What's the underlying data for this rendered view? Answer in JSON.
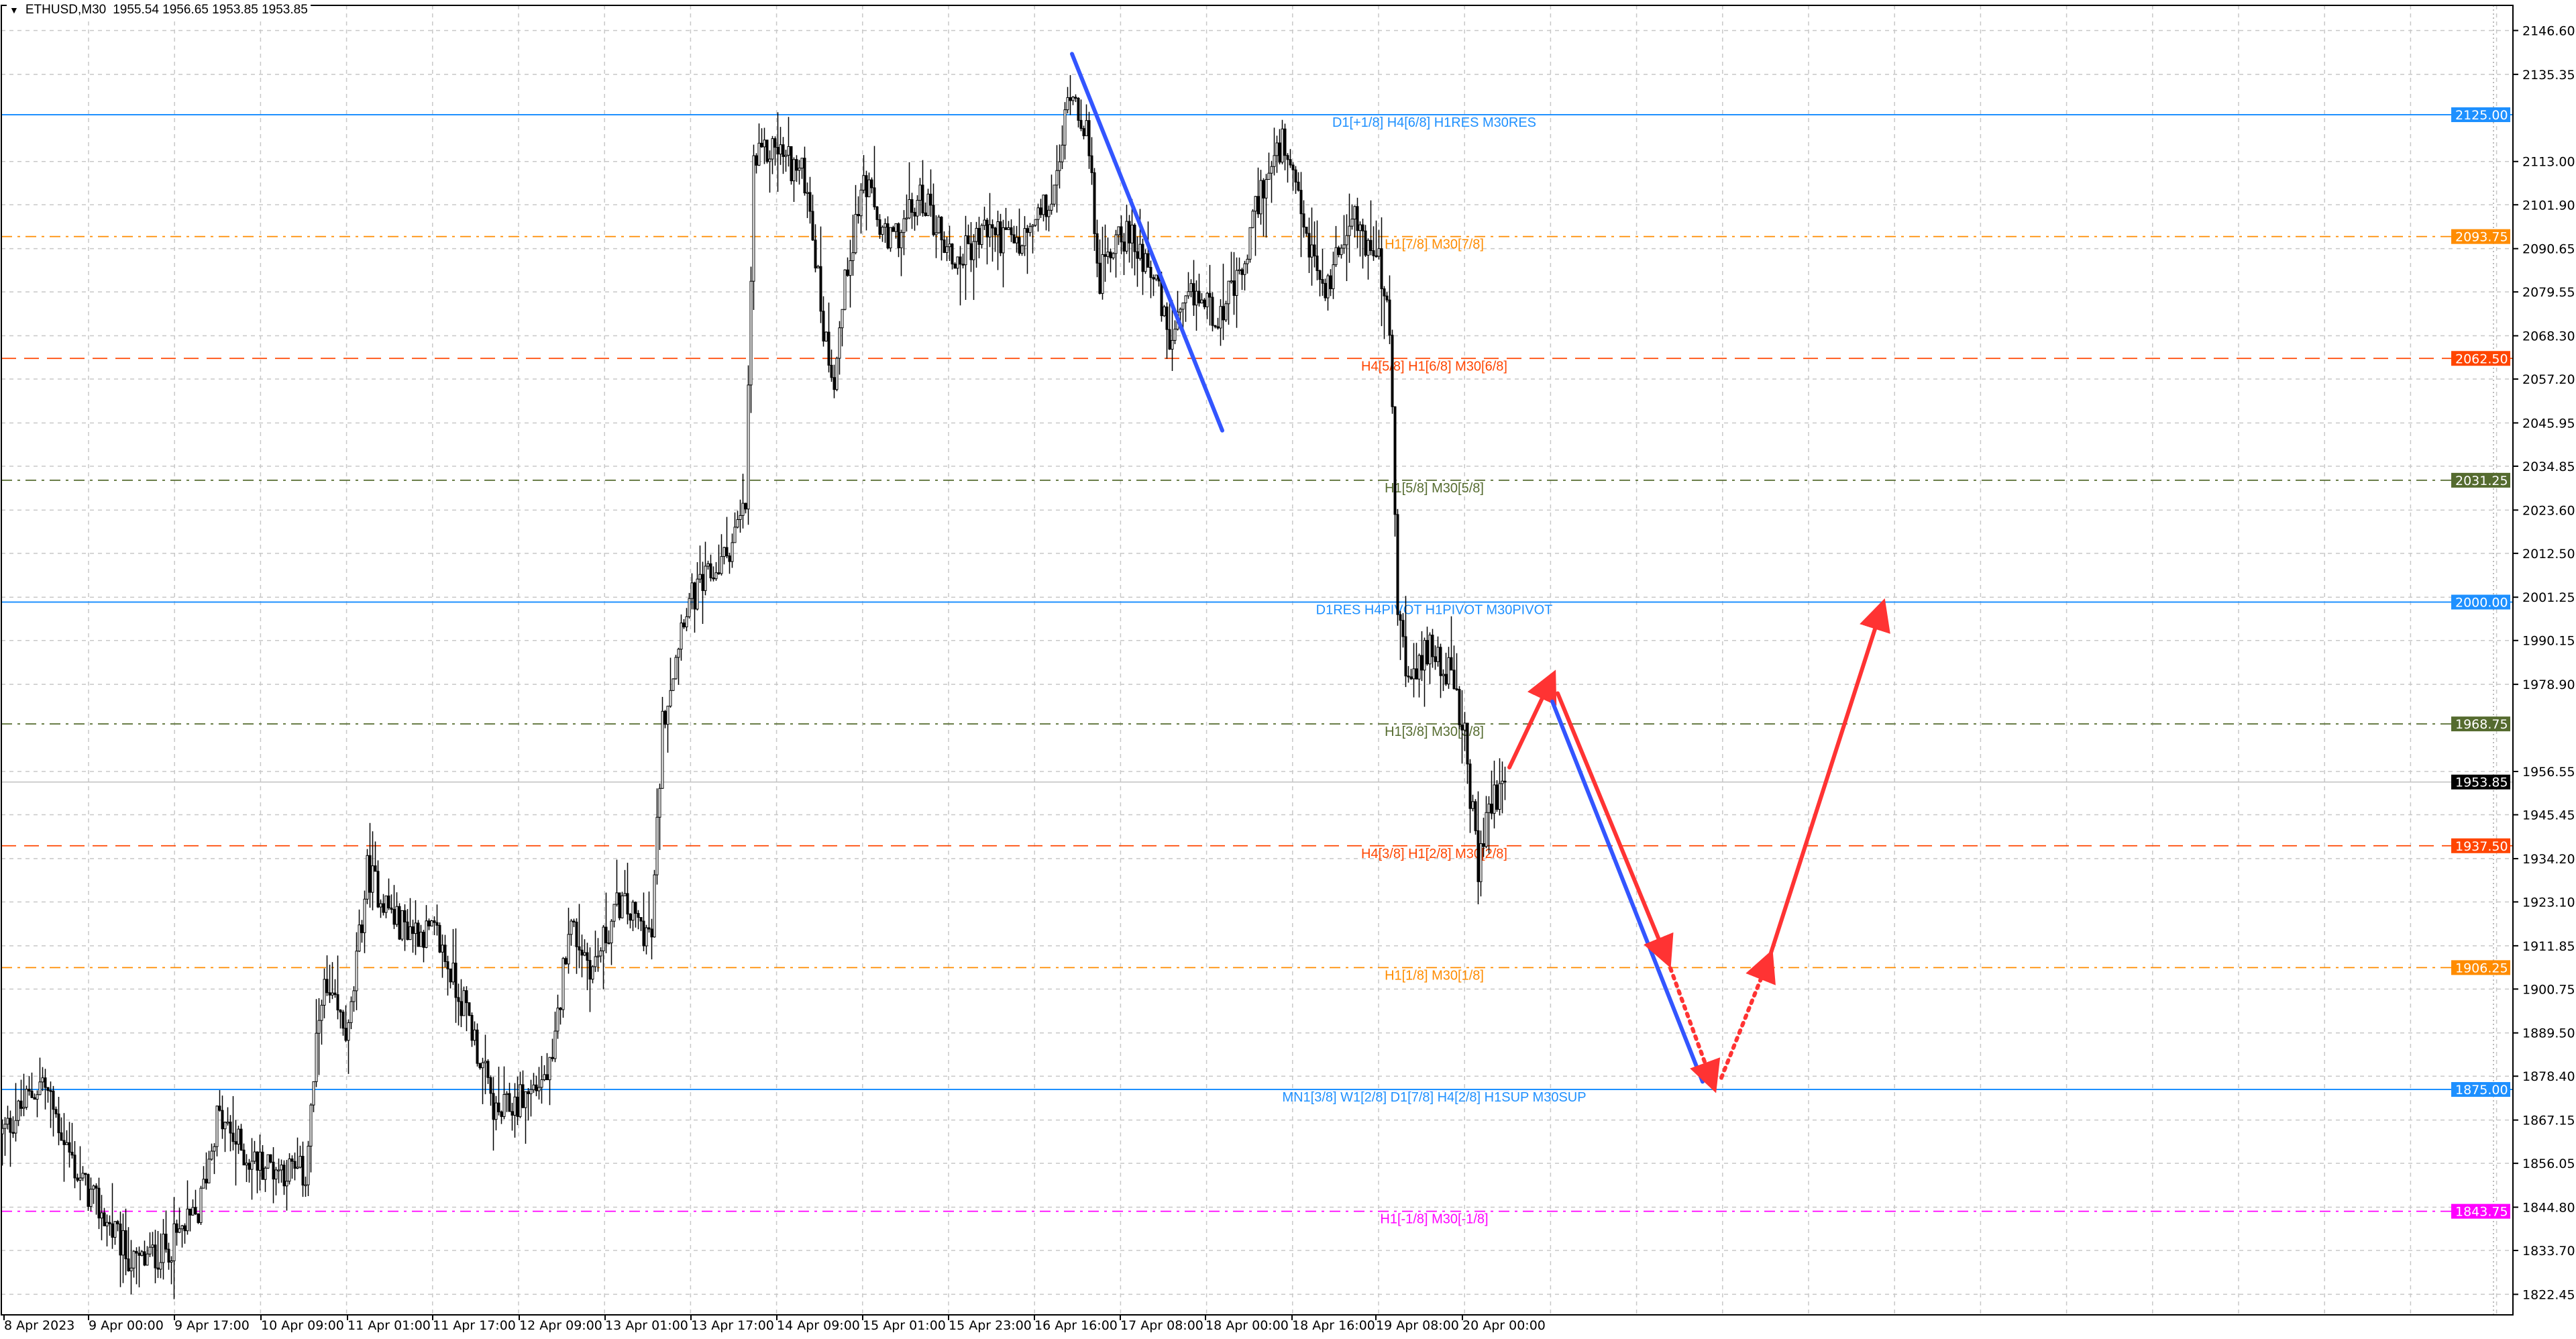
{
  "header": {
    "symbol": "ETHUSD,M30",
    "ohlc": "1955.54 1956.65 1953.85 1953.85",
    "menu_icon": "triangle-down-icon"
  },
  "chart_data": {
    "type": "candlestick",
    "symbol": "ETHUSD",
    "timeframe": "M30",
    "ylim": [
      1818,
      2150
    ],
    "grid": true,
    "y_ticks": [
      "2146.60",
      "2135.35",
      "2113.00",
      "2101.90",
      "2090.65",
      "2079.55",
      "2068.30",
      "2057.20",
      "2045.95",
      "2034.85",
      "2023.60",
      "2012.50",
      "2001.25",
      "1990.15",
      "1978.90",
      "1956.55",
      "1945.45",
      "1934.20",
      "1923.10",
      "1911.85",
      "1900.75",
      "1889.50",
      "1878.40",
      "1867.15",
      "1856.05",
      "1844.80",
      "1833.70",
      "1822.45"
    ],
    "x_ticks": [
      "8 Apr 2023",
      "9 Apr 00:00",
      "9 Apr 17:00",
      "10 Apr 09:00",
      "11 Apr 01:00",
      "11 Apr 17:00",
      "12 Apr 09:00",
      "13 Apr 01:00",
      "13 Apr 17:00",
      "14 Apr 09:00",
      "15 Apr 01:00",
      "15 Apr 23:00",
      "16 Apr 16:00",
      "17 Apr 08:00",
      "18 Apr 00:00",
      "18 Apr 16:00",
      "19 Apr 08:00",
      "20 Apr 00:00"
    ],
    "current_price": {
      "value": 1953.85,
      "label": "1953.85"
    },
    "price_path_bar_price": [
      [
        0,
        1863.6
      ],
      [
        15,
        1877.5
      ],
      [
        28,
        1853
      ],
      [
        49,
        1830
      ],
      [
        61,
        1834
      ],
      [
        73,
        1843
      ],
      [
        80,
        1868
      ],
      [
        92,
        1857
      ],
      [
        113,
        1853
      ],
      [
        119,
        1901
      ],
      [
        129,
        1889
      ],
      [
        136,
        1931
      ],
      [
        147,
        1918
      ],
      [
        162,
        1914
      ],
      [
        174,
        1893
      ],
      [
        184,
        1868
      ],
      [
        196,
        1874
      ],
      [
        205,
        1880
      ],
      [
        211,
        1918
      ],
      [
        220,
        1906
      ],
      [
        230,
        1923
      ],
      [
        242,
        1914
      ],
      [
        246,
        1969
      ],
      [
        254,
        1998
      ],
      [
        269,
        2011
      ],
      [
        277,
        2024
      ],
      [
        280,
        2112
      ],
      [
        288,
        2117
      ],
      [
        300,
        2108
      ],
      [
        306,
        2070
      ],
      [
        310,
        2058
      ],
      [
        315,
        2087
      ],
      [
        321,
        2108
      ],
      [
        330,
        2091
      ],
      [
        343,
        2104
      ],
      [
        355,
        2087
      ],
      [
        367,
        2096
      ],
      [
        379,
        2091
      ],
      [
        392,
        2104
      ],
      [
        398,
        2133
      ],
      [
        404,
        2121
      ],
      [
        409,
        2083
      ],
      [
        416,
        2096
      ],
      [
        428,
        2087
      ],
      [
        435,
        2066
      ],
      [
        444,
        2079
      ],
      [
        453,
        2074
      ],
      [
        462,
        2083
      ],
      [
        468,
        2104
      ],
      [
        477,
        2117
      ],
      [
        487,
        2091
      ],
      [
        493,
        2079
      ],
      [
        502,
        2100
      ],
      [
        513,
        2087
      ],
      [
        517,
        2070
      ],
      [
        520,
        1998
      ],
      [
        525,
        1977
      ],
      [
        532,
        1990
      ],
      [
        539,
        1982
      ],
      [
        545,
        1965
      ],
      [
        550,
        1931
      ],
      [
        554,
        1948
      ],
      [
        560,
        1953.85
      ]
    ],
    "levels": [
      {
        "price": 2125.0,
        "label": "2125.00",
        "text": "D1[+1/8] H4[6/8] H1RES M30RES",
        "color": "#1e90ff",
        "style": "solid"
      },
      {
        "price": 2093.75,
        "label": "2093.75",
        "text": "H1[7/8] M30[7/8]",
        "color": "#ff8c00",
        "style": "dashdot"
      },
      {
        "price": 2062.5,
        "label": "2062.50",
        "text": "H4[5/8] H1[6/8] M30[6/8]",
        "color": "#ff4500",
        "style": "dash"
      },
      {
        "price": 2031.25,
        "label": "2031.25",
        "text": "H1[5/8] M30[5/8]",
        "color": "#556b2f",
        "style": "dashdot"
      },
      {
        "price": 2000.0,
        "label": "2000.00",
        "text": "D1RES H4PIVOT H1PIVOT M30PIVOT",
        "color": "#1e90ff",
        "style": "solid"
      },
      {
        "price": 1968.75,
        "label": "1968.75",
        "text": "H1[3/8] M30[3/8]",
        "color": "#556b2f",
        "style": "dashdot"
      },
      {
        "price": 1937.5,
        "label": "1937.50",
        "text": "H4[3/8] H1[2/8] M30[2/8]",
        "color": "#ff4500",
        "style": "dash"
      },
      {
        "price": 1906.25,
        "label": "1906.25",
        "text": "H1[1/8] M30[1/8]",
        "color": "#ff8c00",
        "style": "dashdot"
      },
      {
        "price": 1875.0,
        "label": "1875.00",
        "text": "MN1[3/8] W1[2/8] D1[7/8] H4[2/8] H1SUP M30SUP",
        "color": "#1e90ff",
        "style": "solid"
      },
      {
        "price": 1843.75,
        "label": "1843.75",
        "text": "H1[-1/8] M30[-1/8]",
        "color": "#ff00ff",
        "style": "dashdot"
      }
    ],
    "drawings": [
      {
        "kind": "trendline",
        "color": "#3355ff",
        "from": [
          399,
          2140.6
        ],
        "to": [
          455,
          2044
        ]
      },
      {
        "kind": "arrow",
        "color": "#ff3333",
        "from": [
          562,
          1957.6
        ],
        "to": [
          578,
          1980.8
        ]
      },
      {
        "kind": "trendline",
        "color": "#3355ff",
        "from": [
          578,
          1974.5
        ],
        "to": [
          634,
          1877
        ]
      },
      {
        "kind": "arrow",
        "color": "#ff3333",
        "from": [
          580,
          1976.6
        ],
        "to": [
          621,
          1908
        ]
      },
      {
        "kind": "arrow-dotted",
        "color": "#ff3333",
        "from": [
          621,
          1908
        ],
        "to": [
          638,
          1876
        ]
      },
      {
        "kind": "arrow-dotted",
        "color": "#ff3333",
        "from": [
          641,
          1878
        ],
        "to": [
          659,
          1909
        ]
      },
      {
        "kind": "arrow",
        "color": "#ff3333",
        "from": [
          659,
          1909
        ],
        "to": [
          701,
          1999
        ]
      }
    ]
  }
}
